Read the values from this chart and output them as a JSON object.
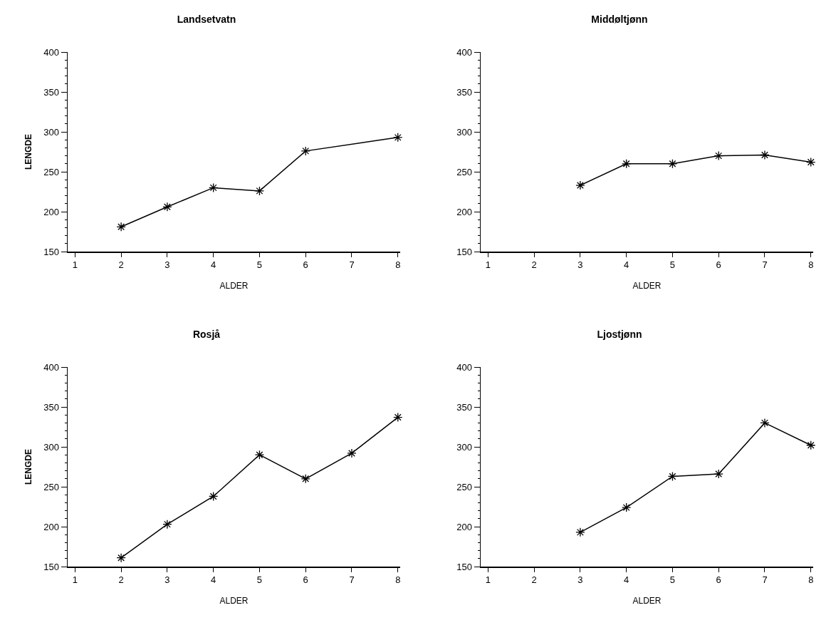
{
  "chart_data": [
    {
      "type": "line",
      "title": "Landsetvatn",
      "xlabel": "ALDER",
      "ylabel": "LENGDE",
      "x": [
        2,
        3,
        4,
        5,
        6,
        8
      ],
      "values": [
        181,
        206,
        230,
        226,
        276,
        293
      ],
      "color": "#000000",
      "marker": "cross",
      "line_style": "solid",
      "grid": false,
      "xlim": [
        0.84,
        8.05
      ],
      "xticks": [
        1,
        2,
        3,
        4,
        5,
        6,
        7,
        8
      ],
      "ylim": [
        150,
        400
      ],
      "yticks": [
        150,
        200,
        250,
        300,
        350,
        400
      ]
    },
    {
      "type": "line",
      "title": "Middøltjønn",
      "xlabel": "ALDER",
      "x": [
        3,
        4,
        5,
        6,
        7,
        8
      ],
      "values": [
        233,
        260,
        260,
        270,
        271,
        262
      ],
      "color": "#000000",
      "marker": "cross",
      "line_style": "solid",
      "grid": false,
      "xlim": [
        0.84,
        8.05
      ],
      "xticks": [
        1,
        2,
        3,
        4,
        5,
        6,
        7,
        8
      ],
      "ylim": [
        150,
        400
      ],
      "yticks": [
        150,
        200,
        250,
        300,
        350,
        400
      ]
    },
    {
      "type": "line",
      "title": "Rosjå",
      "xlabel": "ALDER",
      "ylabel": "LENGDE",
      "x": [
        2,
        3,
        4,
        5,
        6,
        7,
        8
      ],
      "values": [
        161,
        203,
        238,
        290,
        260,
        292,
        337
      ],
      "color": "#000000",
      "marker": "cross",
      "line_style": "solid",
      "grid": false,
      "xlim": [
        0.84,
        8.05
      ],
      "xticks": [
        1,
        2,
        3,
        4,
        5,
        6,
        7,
        8
      ],
      "ylim": [
        150,
        400
      ],
      "yticks": [
        150,
        200,
        250,
        300,
        350,
        400
      ]
    },
    {
      "type": "line",
      "title": "Ljostjønn",
      "xlabel": "ALDER",
      "x": [
        3,
        4,
        5,
        6,
        7,
        8
      ],
      "values": [
        193,
        224,
        263,
        266,
        330,
        302
      ],
      "color": "#000000",
      "marker": "cross",
      "line_style": "solid",
      "grid": false,
      "xlim": [
        0.84,
        8.05
      ],
      "xticks": [
        1,
        2,
        3,
        4,
        5,
        6,
        7,
        8
      ],
      "ylim": [
        150,
        400
      ],
      "yticks": [
        150,
        200,
        250,
        300,
        350,
        400
      ]
    }
  ]
}
